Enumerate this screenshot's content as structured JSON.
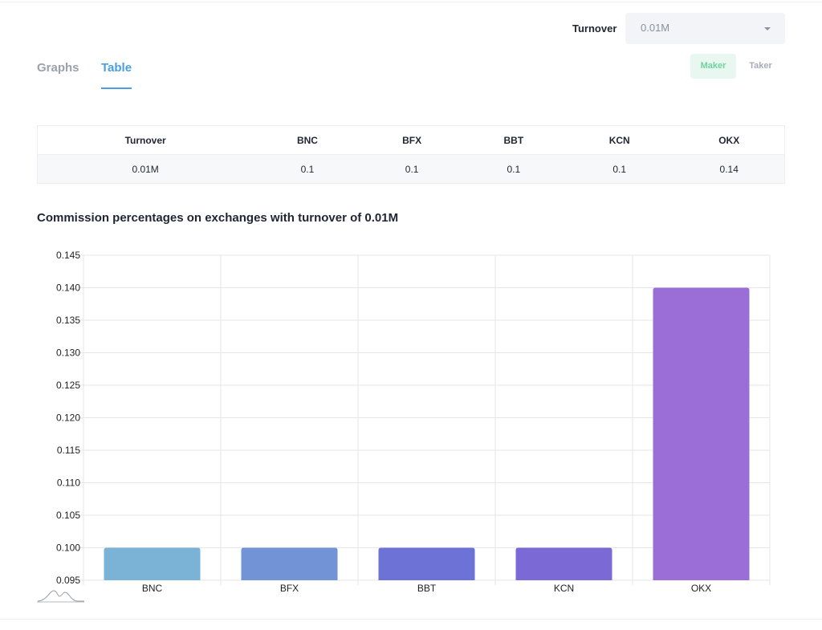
{
  "header": {
    "turnover_label": "Turnover",
    "turnover_value": "0.01M"
  },
  "tabs": [
    {
      "label": "Graphs",
      "active": false
    },
    {
      "label": "Table",
      "active": true
    }
  ],
  "fee_toggle": {
    "maker_label": "Maker",
    "taker_label": "Taker",
    "selected": "Maker"
  },
  "table": {
    "headers": [
      "Turnover",
      "BNC",
      "BFX",
      "BBT",
      "KCN",
      "OKX"
    ],
    "rows": [
      [
        "0.01M",
        "0.1",
        "0.1",
        "0.1",
        "0.1",
        "0.14"
      ]
    ]
  },
  "chart_title": "Commission percentages on exchanges with turnover of 0.01M",
  "colors": {
    "accent": "#4a9ee3",
    "maker_text": "#6fd3a1",
    "bars": [
      "#7ab3d6",
      "#7293d6",
      "#6c72d6",
      "#7b6ad6",
      "#9b6dd6"
    ]
  },
  "chart_data": {
    "type": "bar",
    "title": "Commission percentages on exchanges with turnover of 0.01M",
    "categories": [
      "BNC",
      "BFX",
      "BBT",
      "KCN",
      "OKX"
    ],
    "values": [
      0.1,
      0.1,
      0.1,
      0.1,
      0.14
    ],
    "ylim": [
      0.095,
      0.145
    ],
    "yticks": [
      "0.095",
      "0.100",
      "0.105",
      "0.110",
      "0.115",
      "0.120",
      "0.125",
      "0.130",
      "0.135",
      "0.140",
      "0.145"
    ],
    "xlabel": "",
    "ylabel": "",
    "grid": true,
    "legend": "none"
  }
}
